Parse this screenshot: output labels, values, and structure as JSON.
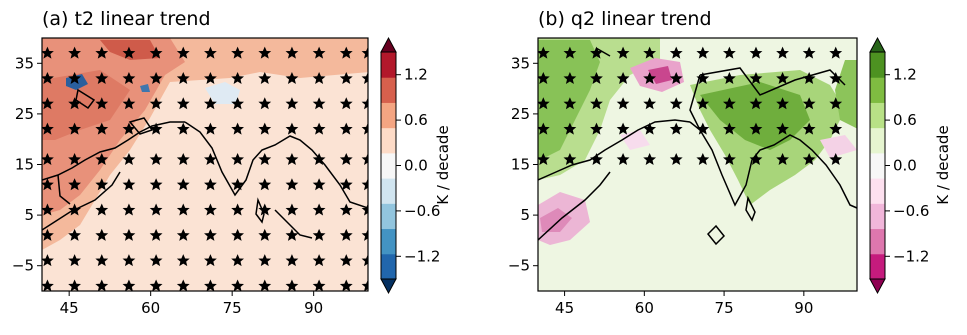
{
  "chart_data": [
    {
      "type": "heatmap",
      "title": "(a) t2 linear trend",
      "xlabel": "",
      "ylabel": "",
      "x_ticks": [
        "45",
        "60",
        "75",
        "90"
      ],
      "y_ticks": [
        "35",
        "25",
        "15",
        "5",
        "−5"
      ],
      "x_tick_values": [
        45,
        60,
        75,
        90
      ],
      "y_tick_values": [
        35,
        25,
        15,
        5,
        -5
      ],
      "xlim": [
        40,
        100
      ],
      "ylim": [
        -10,
        40
      ],
      "colormap": "RdBu_r",
      "colorbar": {
        "label": "K / decade",
        "ticks": [
          "1.2",
          "0.6",
          "0.0",
          "−0.6",
          "−1.2"
        ],
        "tick_values": [
          1.2,
          0.6,
          0.0,
          -0.6,
          -1.2
        ],
        "range": [
          -1.5,
          1.5
        ],
        "colors": [
          "#053061",
          "#2166ac",
          "#4393c3",
          "#92c5de",
          "#d1e5f0",
          "#f7f7f7",
          "#fddbc7",
          "#f4a582",
          "#d6604d",
          "#b2182b",
          "#67001f"
        ]
      },
      "dominant_value_ocean": 0.15,
      "dominant_value_land_northwest": 0.6,
      "negative_spots": [
        {
          "lon": 48,
          "lat": 32,
          "value": -1.2
        },
        {
          "lon": 57,
          "lat": 31,
          "value": -1.2
        }
      ],
      "significance": "stars mark significant trends",
      "star_latitudes": [
        37,
        32,
        27,
        22,
        16,
        11,
        6,
        1,
        -4,
        -9
      ],
      "star_longitudes": [
        41,
        46,
        51,
        56,
        61,
        66,
        71,
        76,
        81,
        86,
        91,
        96,
        100
      ]
    },
    {
      "type": "heatmap",
      "title": "(b) q2 linear trend",
      "xlabel": "",
      "ylabel": "",
      "x_ticks": [
        "45",
        "60",
        "75",
        "90"
      ],
      "y_ticks": [
        "35",
        "25",
        "15",
        "5",
        "−5"
      ],
      "x_tick_values": [
        45,
        60,
        75,
        90
      ],
      "y_tick_values": [
        35,
        25,
        15,
        5,
        -5
      ],
      "xlim": [
        40,
        100
      ],
      "ylim": [
        -10,
        40
      ],
      "colormap": "PiYG",
      "colorbar": {
        "label": "K / decade",
        "ticks": [
          "1.2",
          "0.6",
          "0.0",
          "−0.6",
          "−1.2"
        ],
        "tick_values": [
          1.2,
          0.6,
          0.0,
          -0.6,
          -1.2
        ],
        "range": [
          -1.5,
          1.5
        ],
        "colors": [
          "#8e0152",
          "#c51b7d",
          "#de77ae",
          "#f1b6da",
          "#fde0ef",
          "#f7f7f7",
          "#e6f5d0",
          "#b8e186",
          "#7fbc41",
          "#4d9221",
          "#276419"
        ]
      },
      "dominant_value_ocean": 0.1,
      "dominant_value_land_india": 0.9,
      "negative_spots": [
        {
          "lon": 64,
          "lat": 35,
          "value": -1.2
        },
        {
          "lon": 46,
          "lat": 4,
          "value": -0.6
        }
      ],
      "significance": "stars mark significant trends",
      "star_latitudes": [
        37,
        32,
        27,
        22,
        16
      ],
      "star_longitudes": [
        41,
        46,
        51,
        56,
        61,
        66,
        71,
        76,
        81,
        86,
        91,
        96
      ]
    }
  ]
}
